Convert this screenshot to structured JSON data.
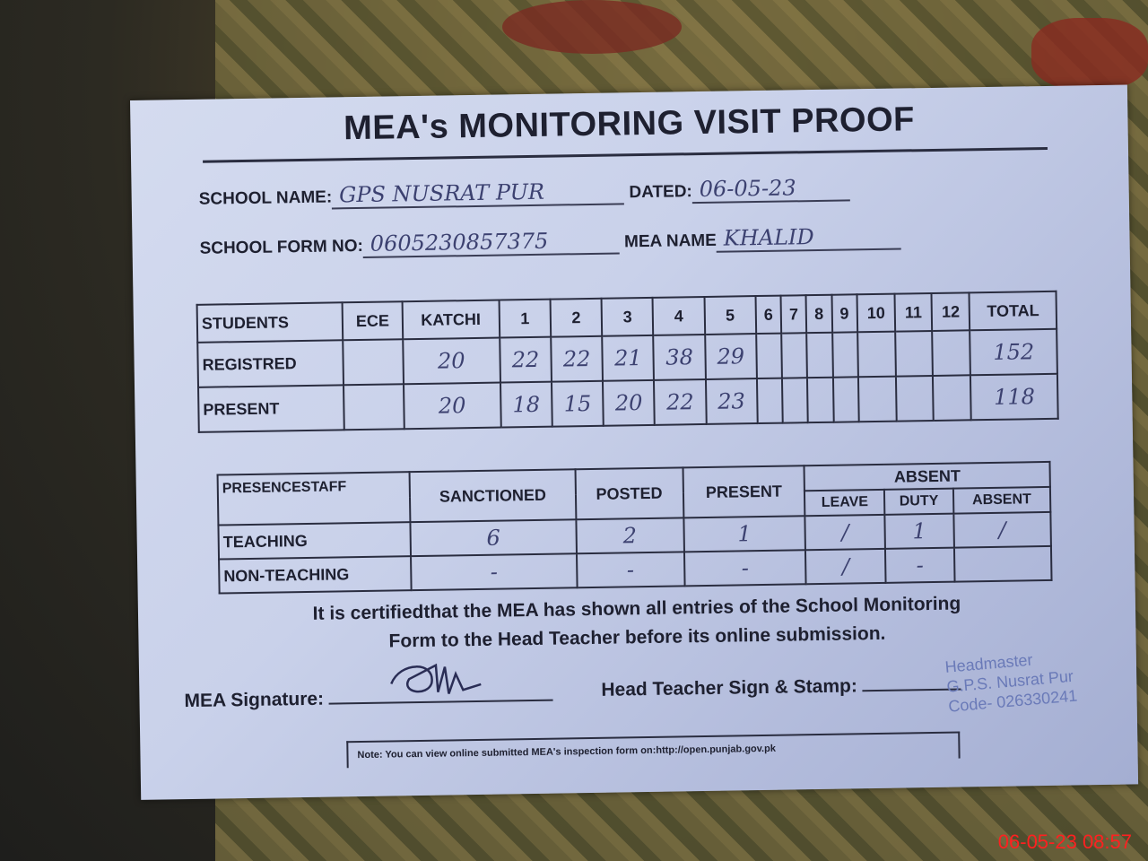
{
  "form": {
    "title": "MEA's MONITORING VISIT PROOF",
    "school_name_label": "SCHOOL NAME:",
    "school_name": "GPS NUSRAT PUR",
    "dated_label": "DATED:",
    "dated": "06-05-23",
    "form_no_label": "SCHOOL FORM NO:",
    "form_no": "0605230857375",
    "mea_name_label": "MEA NAME",
    "mea_name": "KHALID"
  },
  "students": {
    "headers": [
      "STUDENTS",
      "ECE",
      "KATCHI",
      "1",
      "2",
      "3",
      "4",
      "5",
      "6",
      "7",
      "8",
      "9",
      "10",
      "11",
      "12",
      "TOTAL"
    ],
    "rows": [
      {
        "label": "REGISTRED",
        "values": [
          "",
          "20",
          "22",
          "22",
          "21",
          "38",
          "29",
          "",
          "",
          "",
          "",
          "",
          "",
          "",
          "152"
        ]
      },
      {
        "label": "PRESENT",
        "values": [
          "",
          "20",
          "18",
          "15",
          "20",
          "22",
          "23",
          "",
          "",
          "",
          "",
          "",
          "",
          "",
          "118"
        ]
      }
    ]
  },
  "staff": {
    "headers": [
      "PRESENCESTAFF",
      "SANCTIONED",
      "POSTED",
      "PRESENT"
    ],
    "absent_header": "ABSENT",
    "absent_sub": [
      "LEAVE",
      "DUTY",
      "ABSENT"
    ],
    "rows": [
      {
        "label": "TEACHING",
        "values": [
          "6",
          "2",
          "1",
          "/",
          "1",
          "/"
        ]
      },
      {
        "label": "NON-TEACHING",
        "values": [
          "-",
          "-",
          "-",
          "/",
          "-",
          ""
        ]
      }
    ]
  },
  "certification": {
    "line1": "It is certifiedthat the MEA has shown all entries of the School Monitoring",
    "line2": "Form to the Head Teacher before its online submission."
  },
  "signatures": {
    "mea_label": "MEA Signature:",
    "head_label": "Head Teacher Sign & Stamp:",
    "stamp_line1": "Headmaster",
    "stamp_line2": "G.P.S. Nusrat Pur",
    "stamp_line3": "Code- 026330241"
  },
  "note": "Note: You can view online submitted MEA's inspection form on:http://open.punjab.gov.pk",
  "camera_timestamp": "06-05-23  08:57"
}
